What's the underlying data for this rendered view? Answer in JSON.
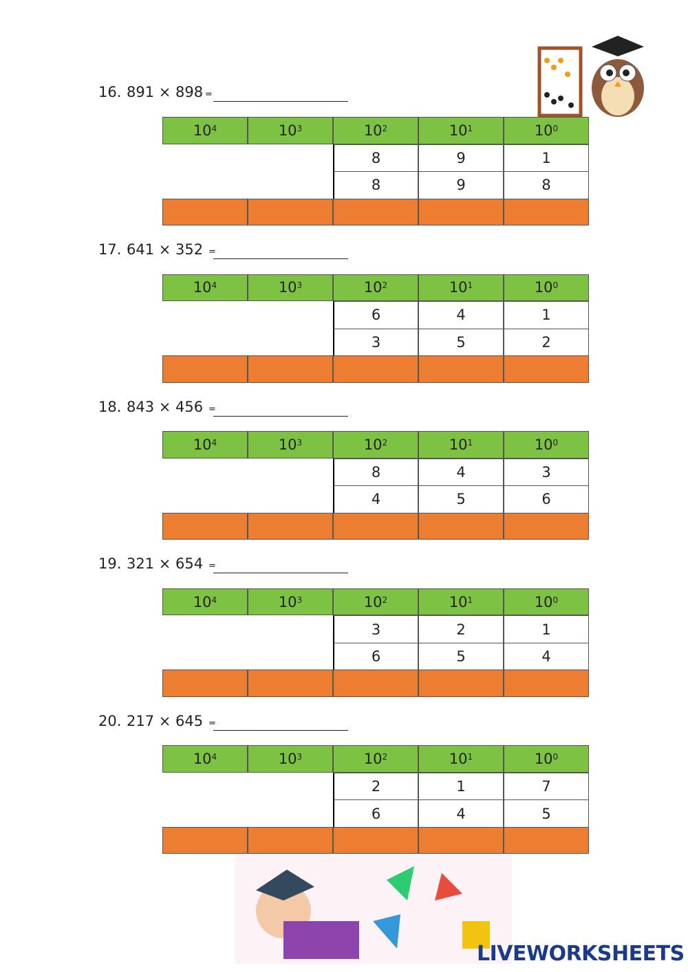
{
  "problems": [
    {
      "number": "16.",
      "expression": "891 × 898",
      "equals": "=",
      "headers": [
        {
          "base": "10",
          "exp": "4"
        },
        {
          "base": "10",
          "exp": "3"
        },
        {
          "base": "10",
          "exp": "2"
        },
        {
          "base": "10",
          "exp": "1"
        },
        {
          "base": "10",
          "exp": "0"
        }
      ],
      "rows": [
        [
          "8",
          "9",
          "1"
        ],
        [
          "8",
          "9",
          "8"
        ]
      ]
    },
    {
      "number": "17.",
      "expression": "641 × 352",
      "equals": "=",
      "headers": [
        {
          "base": "10",
          "exp": "4"
        },
        {
          "base": "10",
          "exp": "3"
        },
        {
          "base": "10",
          "exp": "2"
        },
        {
          "base": "10",
          "exp": "1"
        },
        {
          "base": "10",
          "exp": "0"
        }
      ],
      "rows": [
        [
          "6",
          "4",
          "1"
        ],
        [
          "3",
          "5",
          "2"
        ]
      ]
    },
    {
      "number": "18.",
      "expression": "843 × 456",
      "equals": "=",
      "headers": [
        {
          "base": "10",
          "exp": "4"
        },
        {
          "base": "10",
          "exp": "3"
        },
        {
          "base": "10",
          "exp": "2"
        },
        {
          "base": "10",
          "exp": "1"
        },
        {
          "base": "10",
          "exp": "0"
        }
      ],
      "rows": [
        [
          "8",
          "4",
          "3"
        ],
        [
          "4",
          "5",
          "6"
        ]
      ]
    },
    {
      "number": "19.",
      "expression": "321 × 654",
      "equals": "=",
      "headers": [
        {
          "base": "10",
          "exp": "4"
        },
        {
          "base": "10",
          "exp": "3"
        },
        {
          "base": "10",
          "exp": "2"
        },
        {
          "base": "10",
          "exp": "1"
        },
        {
          "base": "10",
          "exp": "0"
        }
      ],
      "rows": [
        [
          "3",
          "2",
          "1"
        ],
        [
          "6",
          "5",
          "4"
        ]
      ]
    },
    {
      "number": "20.",
      "expression": "217 × 645",
      "equals": "=",
      "headers": [
        {
          "base": "10",
          "exp": "4"
        },
        {
          "base": "10",
          "exp": "3"
        },
        {
          "base": "10",
          "exp": "2"
        },
        {
          "base": "10",
          "exp": "1"
        },
        {
          "base": "10",
          "exp": "0"
        }
      ],
      "rows": [
        [
          "2",
          "1",
          "7"
        ],
        [
          "6",
          "4",
          "5"
        ]
      ]
    }
  ],
  "watermark": "LIVEWORKSHEETS"
}
